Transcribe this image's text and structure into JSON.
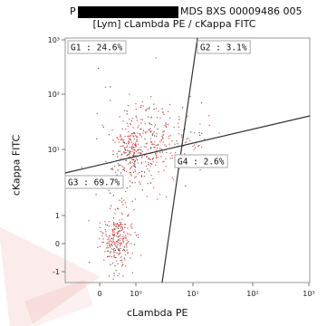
{
  "chart_data": {
    "type": "scatter",
    "title_prefix": "P",
    "title_suffix": "MDS BXS 00009486 005",
    "subtitle": "[Lym] cLambda PE / cKappa FITC",
    "xlabel": "cLambda PE",
    "ylabel": "cKappa FITC",
    "x_ticks": [
      {
        "label": "0",
        "value": 0
      },
      {
        "label": "10⁰",
        "value": 1
      },
      {
        "label": "10¹",
        "value": 2
      },
      {
        "label": "10²",
        "value": 3
      },
      {
        "label": "10³",
        "value": 4
      }
    ],
    "y_ticks": [
      {
        "label": "-1",
        "value": -1
      },
      {
        "label": "0",
        "value": 0
      },
      {
        "label": "1",
        "value": 1
      },
      {
        "label": "10¹",
        "value": 2
      },
      {
        "label": "10²",
        "value": 3
      },
      {
        "label": "10³",
        "value": 4
      }
    ],
    "gates": [
      {
        "id": "G1",
        "label": "G1 : 24.6%",
        "quadrant": "top-left",
        "percent": 24.6
      },
      {
        "id": "G2",
        "label": "G2 : 3.1%",
        "quadrant": "top-right",
        "percent": 3.1
      },
      {
        "id": "G3",
        "label": "G3 : 69.7%",
        "quadrant": "bottom-left",
        "percent": 69.7
      },
      {
        "id": "G4",
        "label": "G4 : 2.6%",
        "quadrant": "bottom-right",
        "percent": 2.6
      }
    ],
    "point_color": "#d9534f",
    "grid": false
  }
}
